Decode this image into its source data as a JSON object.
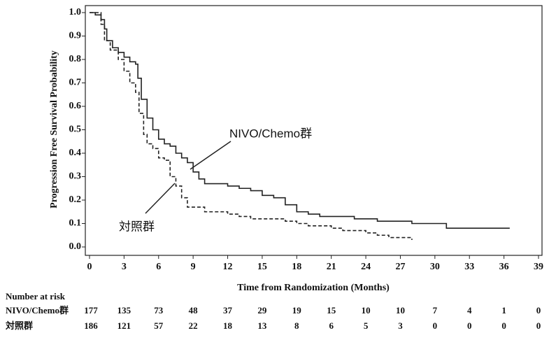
{
  "chart_data": {
    "type": "line",
    "step": true,
    "y_label": "Progression Free Survival Probability",
    "x_label": "Time from Randomization (Months)",
    "xlim": [
      0,
      39
    ],
    "xticks": [
      0,
      3,
      6,
      9,
      12,
      15,
      18,
      21,
      24,
      27,
      30,
      33,
      36,
      39
    ],
    "ylim": [
      0,
      1
    ],
    "yticks": [
      {
        "value": 0,
        "label": "0.0"
      },
      0.1,
      0.2,
      0.3,
      0.4,
      0.5,
      0.6,
      0.7,
      0.8,
      0.9,
      {
        "value": 1,
        "label": "1.0"
      }
    ],
    "grid": false,
    "series": [
      {
        "name": "NIVO/Chemo群",
        "color": "#222222",
        "dash": false,
        "x": [
          0,
          0.5,
          1,
          1.3,
          1.5,
          2,
          2.5,
          3,
          3.5,
          4,
          4.2,
          4.5,
          5,
          5.5,
          6,
          6.5,
          7,
          7.5,
          8,
          8.5,
          9,
          9.5,
          10,
          12,
          13,
          14,
          15,
          16,
          17,
          18,
          19,
          20,
          23,
          25,
          28,
          31,
          36.5
        ],
        "values": [
          1.0,
          0.99,
          0.97,
          0.93,
          0.88,
          0.85,
          0.83,
          0.81,
          0.79,
          0.78,
          0.72,
          0.63,
          0.55,
          0.5,
          0.46,
          0.44,
          0.43,
          0.4,
          0.38,
          0.36,
          0.32,
          0.29,
          0.27,
          0.26,
          0.25,
          0.24,
          0.22,
          0.21,
          0.18,
          0.15,
          0.14,
          0.13,
          0.12,
          0.11,
          0.1,
          0.08,
          0.08
        ]
      },
      {
        "name": "対照群",
        "color": "#222222",
        "dash": true,
        "x": [
          0,
          1,
          1.3,
          1.8,
          2.5,
          3,
          3.5,
          4,
          4.3,
          4.7,
          5,
          5.5,
          6,
          6.5,
          7,
          7.5,
          8,
          8.5,
          10,
          12,
          13,
          14,
          17,
          18,
          19,
          21,
          22,
          24,
          25,
          26,
          28
        ],
        "values": [
          1.0,
          0.95,
          0.88,
          0.84,
          0.8,
          0.75,
          0.7,
          0.66,
          0.57,
          0.48,
          0.44,
          0.42,
          0.38,
          0.37,
          0.3,
          0.26,
          0.21,
          0.17,
          0.15,
          0.14,
          0.13,
          0.12,
          0.11,
          0.1,
          0.09,
          0.08,
          0.07,
          0.06,
          0.05,
          0.04,
          0.03
        ]
      }
    ],
    "risk_table": {
      "title": "Number at risk",
      "rows": [
        {
          "name": "NIVO/Chemo群",
          "values": [
            177,
            135,
            73,
            48,
            37,
            29,
            19,
            15,
            10,
            10,
            7,
            4,
            1,
            0
          ]
        },
        {
          "name": "対照群",
          "values": [
            186,
            121,
            57,
            22,
            18,
            13,
            8,
            6,
            5,
            3,
            0,
            0,
            0,
            0
          ]
        }
      ]
    }
  }
}
